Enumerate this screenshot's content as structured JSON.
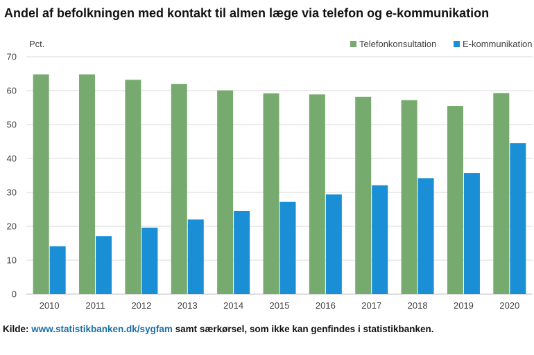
{
  "title": "Andel af befolkningen med kontakt til almen læge via telefon og e-kommunikation",
  "source": {
    "prefix": "Kilde: ",
    "link": "www.statistikbanken.dk/sygfam",
    "suffix": " samt særkørsel, som ikke kan genfindes i statistikbanken."
  },
  "chart_data": {
    "type": "bar",
    "ylabel": "Pct.",
    "xlabel": "",
    "ylim": [
      0,
      70
    ],
    "yticks": [
      0,
      10,
      20,
      30,
      40,
      50,
      60,
      70
    ],
    "grid": true,
    "legend_position": "top-right",
    "categories": [
      "2010",
      "2011",
      "2012",
      "2013",
      "2014",
      "2015",
      "2016",
      "2017",
      "2018",
      "2019",
      "2020"
    ],
    "series": [
      {
        "name": "Telefonkonsultation",
        "color": "#77aa6e",
        "values": [
          64.8,
          64.8,
          63.2,
          62.0,
          60.1,
          59.2,
          58.9,
          58.2,
          57.2,
          55.5,
          59.3
        ]
      },
      {
        "name": "E-kommunikation",
        "color": "#1a8fd6",
        "values": [
          14.1,
          17.1,
          19.6,
          22.0,
          24.5,
          27.2,
          29.4,
          32.1,
          34.2,
          35.7,
          44.5
        ]
      }
    ]
  }
}
